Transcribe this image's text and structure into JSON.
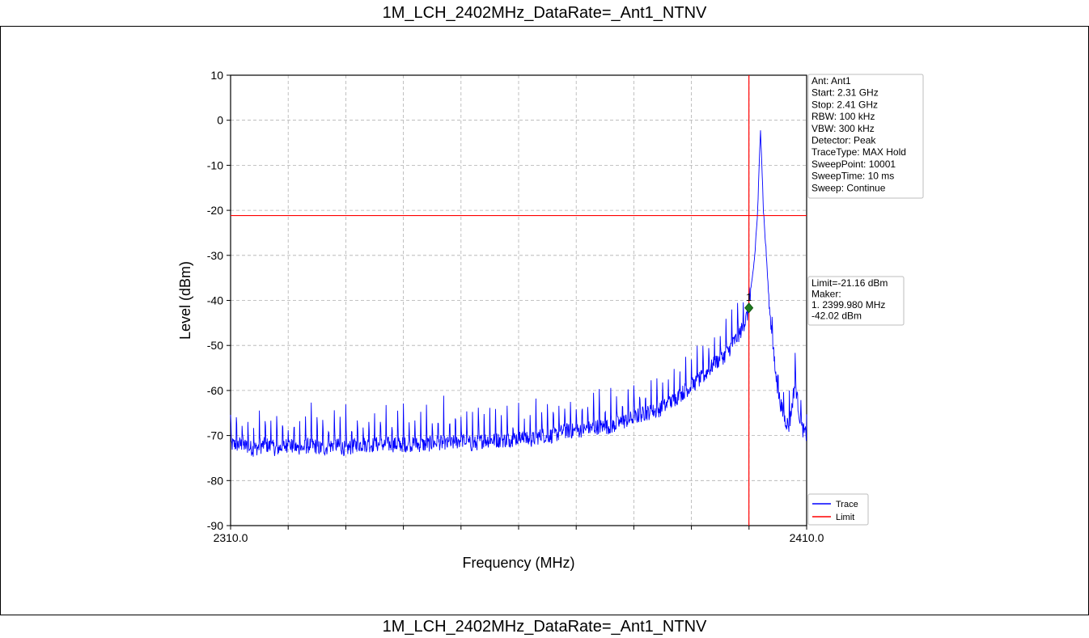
{
  "header": {
    "title": "1M_LCH_2402MHz_DataRate=_Ant1_NTNV"
  },
  "footer": {
    "title": "1M_LCH_2402MHz_DataRate=_Ant1_NTNV"
  },
  "colors": {
    "trace": "#0000ff",
    "limit": "#ff0000",
    "marker": "#1e7b1e",
    "grid": "#b0b0b0"
  },
  "chart_data": {
    "type": "line",
    "title": "",
    "xlabel": "Frequency (MHz)",
    "ylabel": "Level (dBm)",
    "xlim": [
      2310.0,
      2410.0
    ],
    "ylim": [
      -90,
      10
    ],
    "x_tick_labels": [
      "2310.0",
      "2410.0"
    ],
    "y_ticks": [
      10,
      0,
      -10,
      -20,
      -30,
      -40,
      -50,
      -60,
      -70,
      -80,
      -90
    ],
    "grid": true,
    "series": [
      {
        "name": "Trace",
        "color": "#0000ff",
        "x": [
          2310,
          2312,
          2314,
          2316,
          2318,
          2320,
          2322,
          2324,
          2326,
          2328,
          2330,
          2332,
          2334,
          2336,
          2338,
          2340,
          2342,
          2344,
          2346,
          2348,
          2350,
          2352,
          2354,
          2356,
          2358,
          2360,
          2362,
          2364,
          2366,
          2368,
          2370,
          2372,
          2374,
          2376,
          2378,
          2380,
          2382,
          2384,
          2386,
          2388,
          2390,
          2392,
          2394,
          2396,
          2397,
          2398,
          2399,
          2399.98,
          2400.5,
          2401,
          2401.5,
          2402,
          2402.5,
          2403,
          2403.5,
          2404,
          2404.5,
          2405,
          2406,
          2407,
          2408,
          2409,
          2410
        ],
        "y": [
          -72,
          -72,
          -73,
          -72,
          -73,
          -72,
          -73,
          -72,
          -73,
          -72,
          -73,
          -72,
          -72,
          -72,
          -72,
          -72,
          -72,
          -72,
          -71.5,
          -72,
          -71,
          -72,
          -71,
          -71,
          -71,
          -70.5,
          -71,
          -70,
          -70,
          -69,
          -69,
          -68.5,
          -68,
          -68,
          -67,
          -66,
          -65,
          -64.5,
          -63,
          -61,
          -59,
          -57,
          -54,
          -52,
          -50,
          -48,
          -46,
          -42.02,
          -36,
          -30,
          -20,
          -1.5,
          -20,
          -30,
          -41,
          -48,
          -55,
          -60,
          -66,
          -68,
          -58,
          -68,
          -70
        ]
      }
    ],
    "limit": {
      "name": "Limit",
      "value": -21.16,
      "color": "#ff0000"
    },
    "marker": {
      "label": "1",
      "x": 2399.98,
      "y": -42.02
    },
    "legend": {
      "placement": "right-bottom",
      "entries": [
        "Trace",
        "Limit"
      ]
    },
    "info_box": {
      "lines": [
        "Ant: Ant1",
        "Start: 2.31 GHz",
        "Stop: 2.41 GHz",
        "RBW: 100 kHz",
        "VBW: 300 kHz",
        "Detector: Peak",
        "TraceType: MAX Hold",
        "SweepPoint: 10001",
        "SweepTime: 10 ms",
        "Sweep: Continue"
      ]
    },
    "marker_box": {
      "lines": [
        "Limit=-21.16 dBm",
        "Maker:",
        "1. 2399.980 MHz",
        "    -42.02 dBm"
      ]
    }
  }
}
